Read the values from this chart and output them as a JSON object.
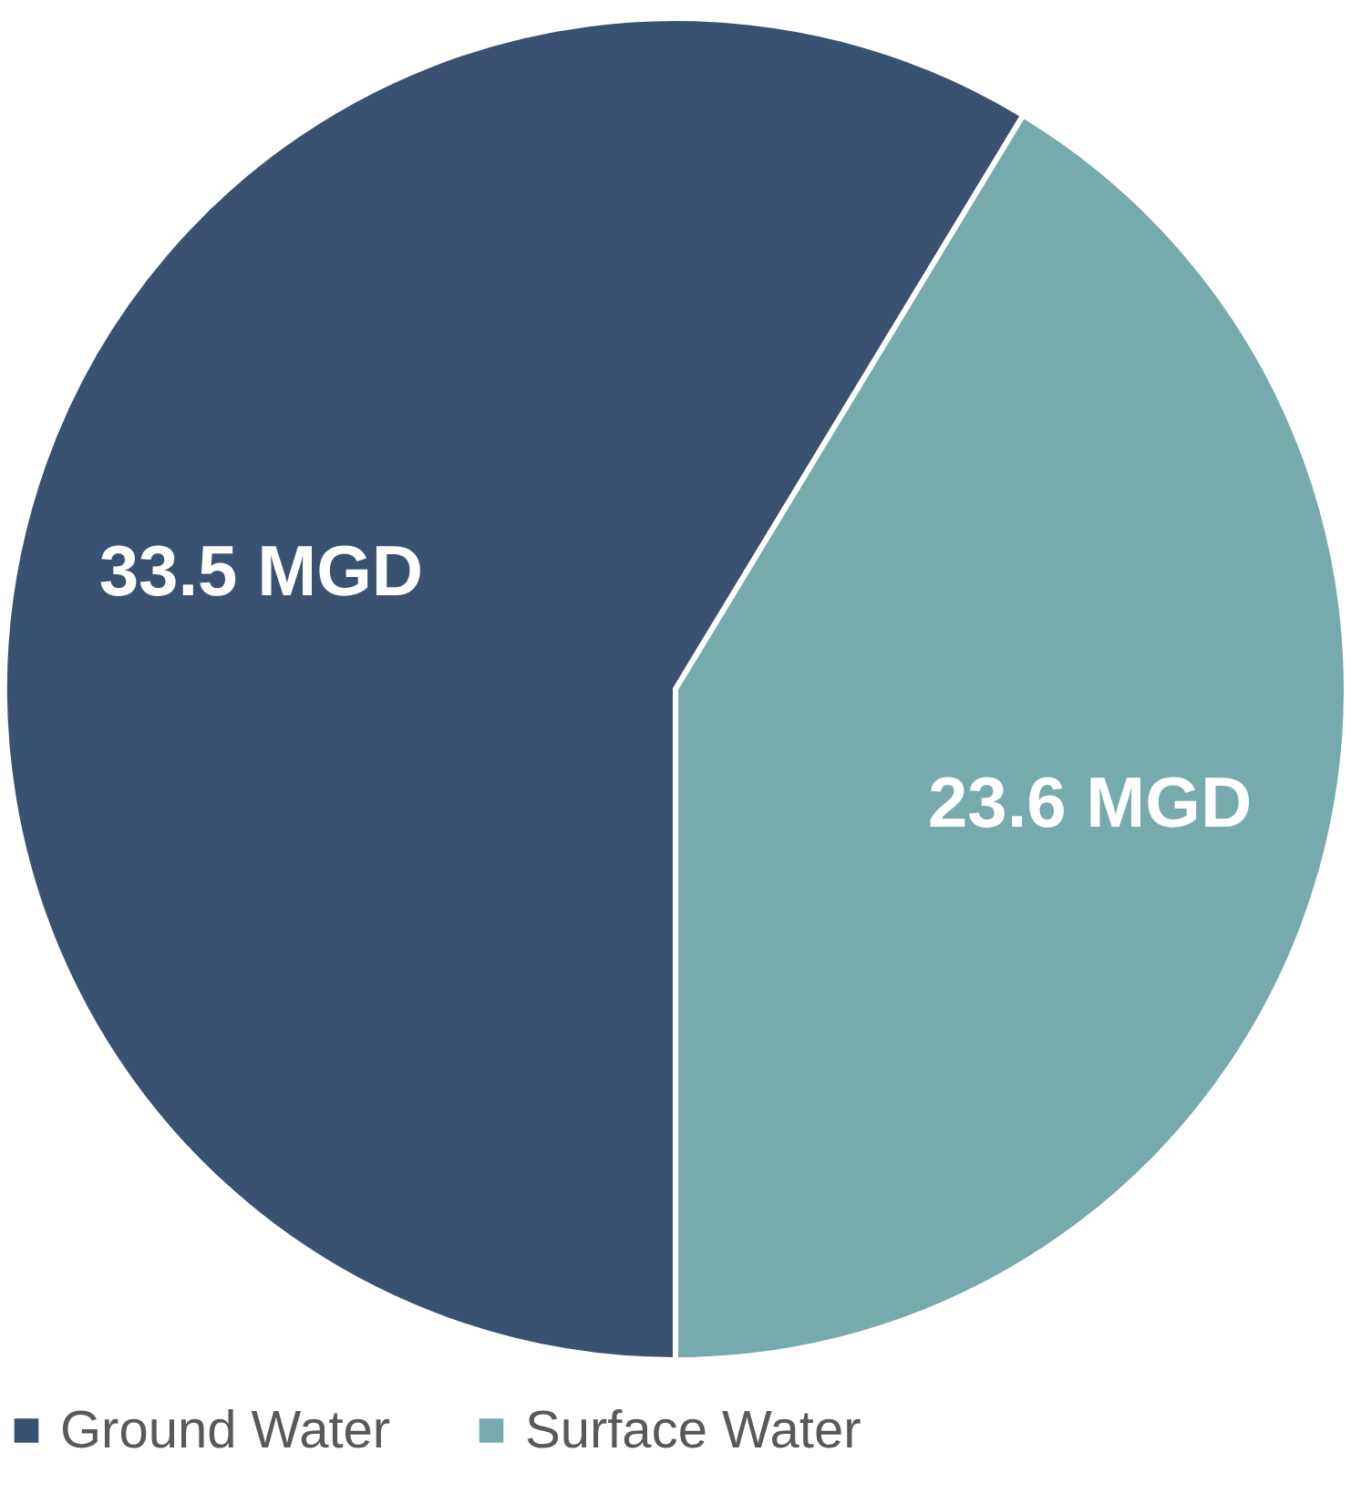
{
  "chart_data": {
    "type": "pie",
    "categories": [
      "Ground Water",
      "Surface Water"
    ],
    "values": [
      33.5,
      23.6
    ],
    "colors": [
      "#3a5272",
      "#76aaad"
    ],
    "value_labels": [
      "33.5 MGD",
      "23.6 MGD"
    ],
    "legend": "bottom"
  }
}
